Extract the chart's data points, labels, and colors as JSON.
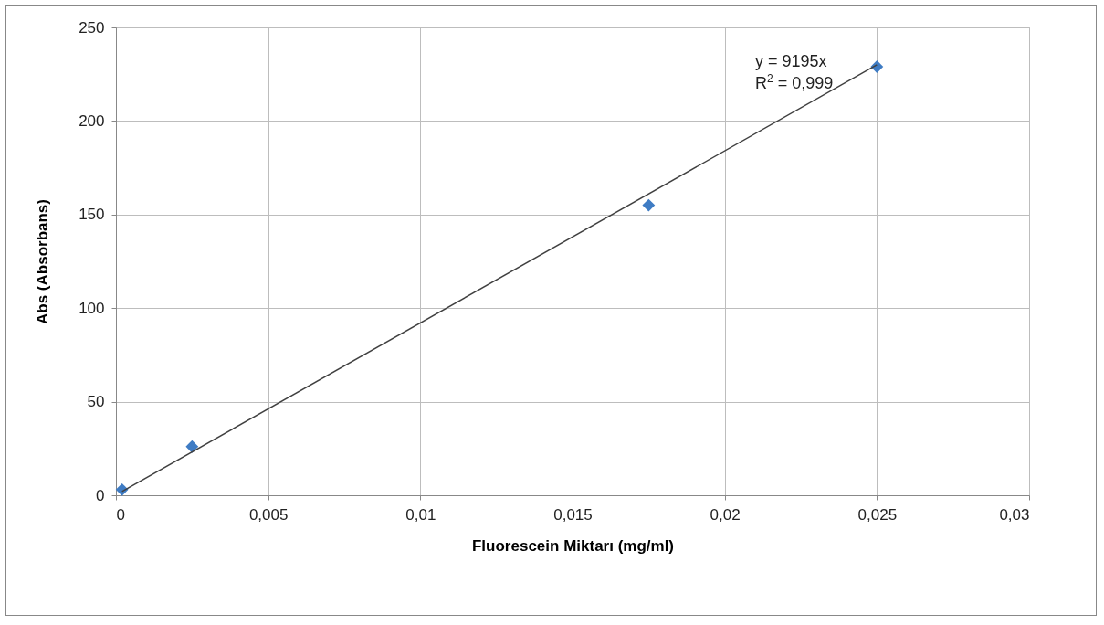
{
  "chart_data": {
    "type": "scatter",
    "xlabel": "Fluorescein Miktarı (mg/ml)",
    "ylabel": "Abs (Absorbans)",
    "x": [
      0.0002,
      0.0025,
      0.0175,
      0.025
    ],
    "series": [
      {
        "color": "#3f7cc4",
        "marker": "diamond",
        "values": [
          3,
          26,
          155,
          229
        ]
      },
      {
        "type": "line",
        "color": "#404040",
        "marker": "none",
        "x": [
          0.0002,
          0.025
        ],
        "values": [
          2,
          230
        ]
      }
    ],
    "xlim": [
      0,
      0.03
    ],
    "xticks": [
      0,
      {
        "value": 0.005,
        "label": "0,005"
      },
      {
        "value": 0.01,
        "label": "0,01"
      },
      {
        "value": 0.015,
        "label": "0,015"
      },
      {
        "value": 0.02,
        "label": "0,02"
      },
      {
        "value": 0.025,
        "label": "0,025"
      },
      {
        "value": 0.03,
        "label": "0,03"
      }
    ],
    "ylim": [
      0,
      250
    ],
    "yticks": [
      0,
      50,
      100,
      150,
      200,
      250
    ],
    "grid": true,
    "annotations": [
      "y = 9195x",
      "R$^{2}$ = 0,999"
    ]
  }
}
